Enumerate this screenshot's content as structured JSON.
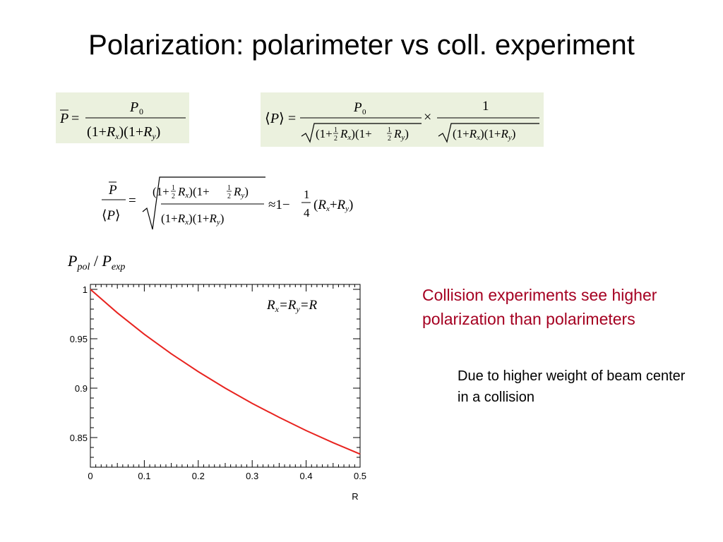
{
  "slide": {
    "title": "Polarization: polarimeter vs coll. experiment",
    "text_color_accent": "#a50021",
    "formula_bg": "#ebf1de",
    "notes": {
      "main": "Collision experiments see higher polarization than polarimeters",
      "sub": "Due to higher weight of beam center in a collision"
    },
    "y_axis_title": {
      "p": "P",
      "pol": "pol",
      "slash": " / ",
      "p2": "P",
      "exp": "exp"
    },
    "curve_label": "R_x=R_y=R"
  },
  "formulas": {
    "polarimeter": "P̄ = P0 / ((1+Rx)(1+Ry))",
    "collision": "⟨P⟩ = P0 / sqrt((1+½Rx)(1+½Ry)) × 1 / sqrt((1+Rx)(1+Ry))",
    "ratio": "P̄/⟨P⟩ = sqrt((1+½Rx)(1+½Ry) / ((1+Rx)(1+Ry))) ≈ 1 − ¼(Rx+Ry)"
  },
  "chart_data": {
    "type": "line",
    "xlabel": "R",
    "ylabel": "",
    "xlim": [
      0,
      0.5
    ],
    "ylim": [
      0.82,
      1.005
    ],
    "x_ticks": [
      "0",
      "0.1",
      "0.2",
      "0.3",
      "0.4",
      "0.5"
    ],
    "y_ticks": [
      "0.85",
      "0.9",
      "0.95",
      "1"
    ],
    "series": [
      {
        "name": "",
        "color": "#e8231f",
        "x": [
          0,
          0.05,
          0.1,
          0.15,
          0.2,
          0.25,
          0.3,
          0.35,
          0.4,
          0.45,
          0.5
        ],
        "y": [
          1.0,
          0.9762,
          0.9545,
          0.9348,
          0.9167,
          0.9,
          0.8846,
          0.8704,
          0.8571,
          0.8448,
          0.8333
        ]
      }
    ],
    "grid": false,
    "legend": "none"
  }
}
